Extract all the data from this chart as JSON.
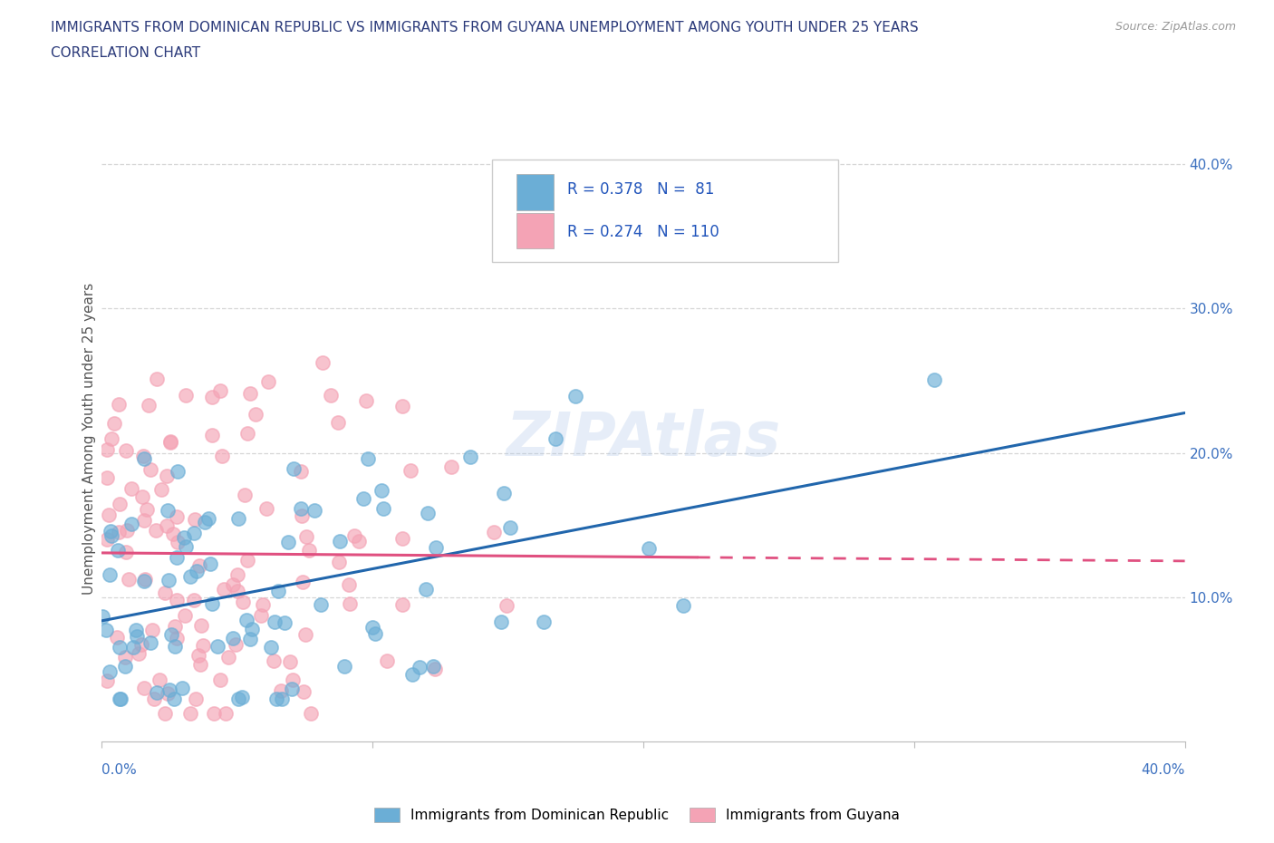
{
  "title_line1": "IMMIGRANTS FROM DOMINICAN REPUBLIC VS IMMIGRANTS FROM GUYANA UNEMPLOYMENT AMONG YOUTH UNDER 25 YEARS",
  "title_line2": "CORRELATION CHART",
  "source_text": "Source: ZipAtlas.com",
  "ylabel": "Unemployment Among Youth under 25 years",
  "legend_label_blue": "Immigrants from Dominican Republic",
  "legend_label_pink": "Immigrants from Guyana",
  "R_blue": 0.378,
  "N_blue": 81,
  "R_pink": 0.274,
  "N_pink": 110,
  "color_blue": "#6baed6",
  "color_pink": "#f4a3b5",
  "trendline_blue": "#2166ac",
  "trendline_pink": "#e05080",
  "watermark": "ZIPAtlas",
  "xlim": [
    0.0,
    0.4
  ],
  "ylim": [
    0.0,
    0.42
  ],
  "xtick_vals": [
    0.0,
    0.1,
    0.2,
    0.3,
    0.4
  ],
  "ytick_vals": [
    0.1,
    0.2,
    0.3,
    0.4
  ],
  "xtick_labels": [
    "0.0%",
    "",
    "",
    "",
    "40.0%"
  ],
  "ytick_labels": [
    "10.0%",
    "20.0%",
    "30.0%",
    "40.0%"
  ],
  "background_color": "#ffffff",
  "grid_color": "#cccccc",
  "axis_label_color": "#555555",
  "title_color": "#2b3a7a"
}
